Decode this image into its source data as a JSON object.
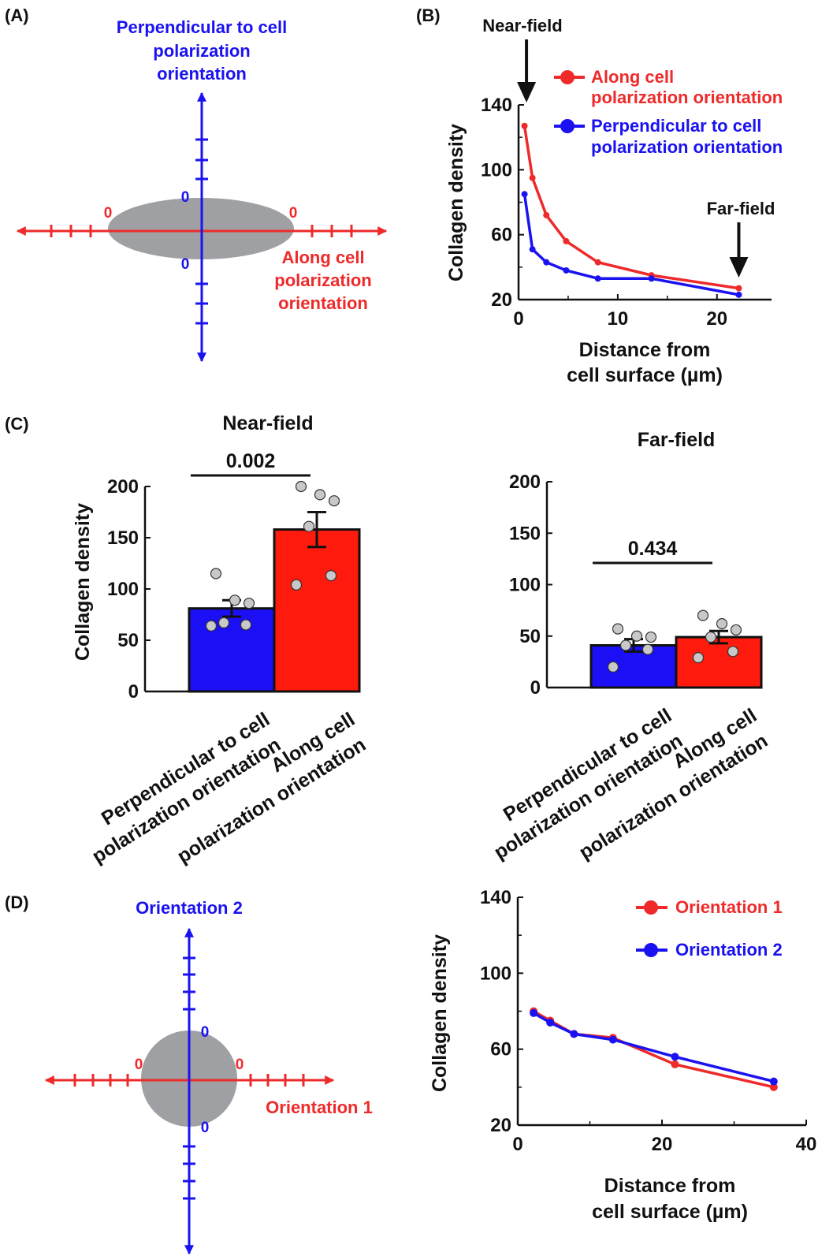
{
  "colors": {
    "blue": "#1a12f0",
    "red": "#ee2a2a",
    "bar_red": "#ff1a0e",
    "bar_blue": "#1a0ff5",
    "cell": "#9ea0a3",
    "dot": "#c8c8c8"
  },
  "panels": {
    "a": "(A)",
    "b": "(B)",
    "c": "(C)",
    "d": "(D)"
  },
  "diagram_a": {
    "perp_label": [
      "Perpendicular to cell",
      "polarization",
      "orientation"
    ],
    "along_label": [
      "Along cell",
      "polarization",
      "orientation"
    ],
    "zero": "0"
  },
  "diagram_d": {
    "orient2_label": "Orientation 2",
    "orient1_label": "Orientation 1",
    "zero": "0"
  },
  "chart_data": [
    {
      "id": "B",
      "type": "line",
      "title": "",
      "xlabel": [
        "Distance from",
        "cell surface (µm)"
      ],
      "ylabel": "Collagen density",
      "xlim": [
        0,
        25.5
      ],
      "ylim": [
        20,
        140
      ],
      "xticks": [
        0,
        10,
        20
      ],
      "yticks": [
        20,
        60,
        100,
        140
      ],
      "annotations": {
        "near": "Near-field",
        "far": "Far-field",
        "near_x": 0.8,
        "far_x": 22.2
      },
      "series": [
        {
          "name": "Along cell polarization orientation",
          "legend": [
            "Along cell",
            "polarization orientation"
          ],
          "color": "red",
          "x": [
            0.6,
            1.4,
            2.8,
            4.8,
            8.0,
            13.4,
            22.2
          ],
          "y": [
            127,
            95,
            72,
            56,
            43,
            35,
            27
          ]
        },
        {
          "name": "Perpendicular to cell polarization orientation",
          "legend": [
            "Perpendicular to cell",
            "polarization orientation"
          ],
          "color": "blue",
          "x": [
            0.6,
            1.4,
            2.8,
            4.8,
            8.0,
            13.4,
            22.2
          ],
          "y": [
            85,
            51,
            43,
            38,
            33,
            33,
            23
          ]
        }
      ]
    },
    {
      "id": "C-near",
      "type": "bar",
      "title": "Near-field",
      "ylabel": "Collagen density",
      "ylim": [
        0,
        200
      ],
      "yticks": [
        0,
        50,
        100,
        150,
        200
      ],
      "categories": [
        [
          "Perpendicular to cell",
          "polarization orientation"
        ],
        [
          "Along cell",
          "polarization orientation"
        ]
      ],
      "values": [
        81,
        158
      ],
      "errors": [
        8,
        17
      ],
      "points": [
        [
          115,
          89,
          86,
          67,
          65,
          64
        ],
        [
          200,
          192,
          186,
          161,
          113,
          104
        ]
      ],
      "pvalue": "0.002"
    },
    {
      "id": "C-far",
      "type": "bar",
      "title": "Far-field",
      "ylabel": "",
      "ylim": [
        0,
        200
      ],
      "yticks": [
        0,
        50,
        100,
        150,
        200
      ],
      "categories": [
        [
          "Perpendicular to cell",
          "polarization orientation"
        ],
        [
          "Along cell",
          "polarization orientation"
        ]
      ],
      "values": [
        41,
        49
      ],
      "errors": [
        6,
        6
      ],
      "points": [
        [
          57,
          50,
          49,
          41,
          37,
          20
        ],
        [
          70,
          62,
          56,
          49,
          35,
          29
        ]
      ],
      "pvalue": "0.434"
    },
    {
      "id": "D",
      "type": "line",
      "title": "",
      "xlabel": [
        "Distance from",
        "cell surface (µm)"
      ],
      "ylabel": "Collagen density",
      "xlim": [
        0,
        40
      ],
      "ylim": [
        20,
        140
      ],
      "xticks": [
        0,
        20,
        40
      ],
      "yticks": [
        20,
        60,
        100,
        140
      ],
      "series": [
        {
          "name": "Orientation 1",
          "legend": [
            "Orientation 1"
          ],
          "color": "red",
          "x": [
            2.2,
            4.5,
            7.8,
            13.2,
            21.8,
            35.5
          ],
          "y": [
            80,
            75,
            68,
            66,
            52,
            40
          ]
        },
        {
          "name": "Orientation 2",
          "legend": [
            "Orientation 2"
          ],
          "color": "blue",
          "x": [
            2.2,
            4.5,
            7.8,
            13.2,
            21.8,
            35.5
          ],
          "y": [
            79,
            74,
            68,
            65,
            56,
            43
          ]
        }
      ]
    }
  ]
}
